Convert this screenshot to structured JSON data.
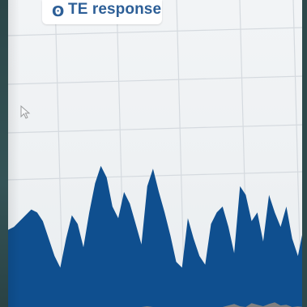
{
  "window": {
    "title": "TE response",
    "title_icon": "signal-icon"
  },
  "colors": {
    "series_fill": "#0f4f8f",
    "secondary_fill": "#7f7f7f",
    "title_color": "#2d5f97",
    "grid": "#d5dadf",
    "screen_bg": "#eef1f3",
    "bezel": "#2f4a4c"
  },
  "chart_data": {
    "type": "area",
    "grid": true,
    "legend": "none",
    "series": [
      {
        "values": [
          0.28,
          0.3,
          0.34,
          0.38,
          0.42,
          0.4,
          0.34,
          0.22,
          0.1,
          0.02,
          0.22,
          0.38,
          0.32,
          0.16,
          0.4,
          0.6,
          0.72,
          0.64,
          0.44,
          0.36,
          0.54,
          0.46,
          0.32,
          0.18,
          0.58,
          0.7,
          0.54,
          0.4,
          0.24,
          0.06,
          0.02,
          0.36,
          0.22,
          0.1,
          0.04,
          0.32,
          0.4,
          0.44,
          0.3,
          0.12,
          0.58,
          0.52,
          0.34,
          0.4,
          0.2,
          0.52,
          0.4,
          0.3,
          0.44,
          0.22,
          0.1,
          0.3
        ]
      },
      {
        "values": [
          0.0,
          0.0,
          0.0,
          0.0,
          0.0,
          0.0,
          0.0,
          0.0,
          0.0,
          0.0,
          0.0,
          0.0,
          0.0,
          0.0,
          0.0,
          0.0,
          0.0,
          0.0,
          0.0,
          0.0,
          0.0,
          0.0,
          0.0,
          0.0,
          0.01,
          0.0,
          0.0,
          0.0,
          0.0,
          0.0,
          0.0,
          0.0,
          0.0,
          0.0,
          0.0,
          0.0,
          0.0,
          0.0,
          0.02,
          0.04,
          0.01,
          0.0,
          0.05,
          0.03,
          0.01,
          0.04,
          0.06,
          0.02,
          0.03,
          0.0,
          0.01,
          0.0
        ]
      }
    ]
  }
}
